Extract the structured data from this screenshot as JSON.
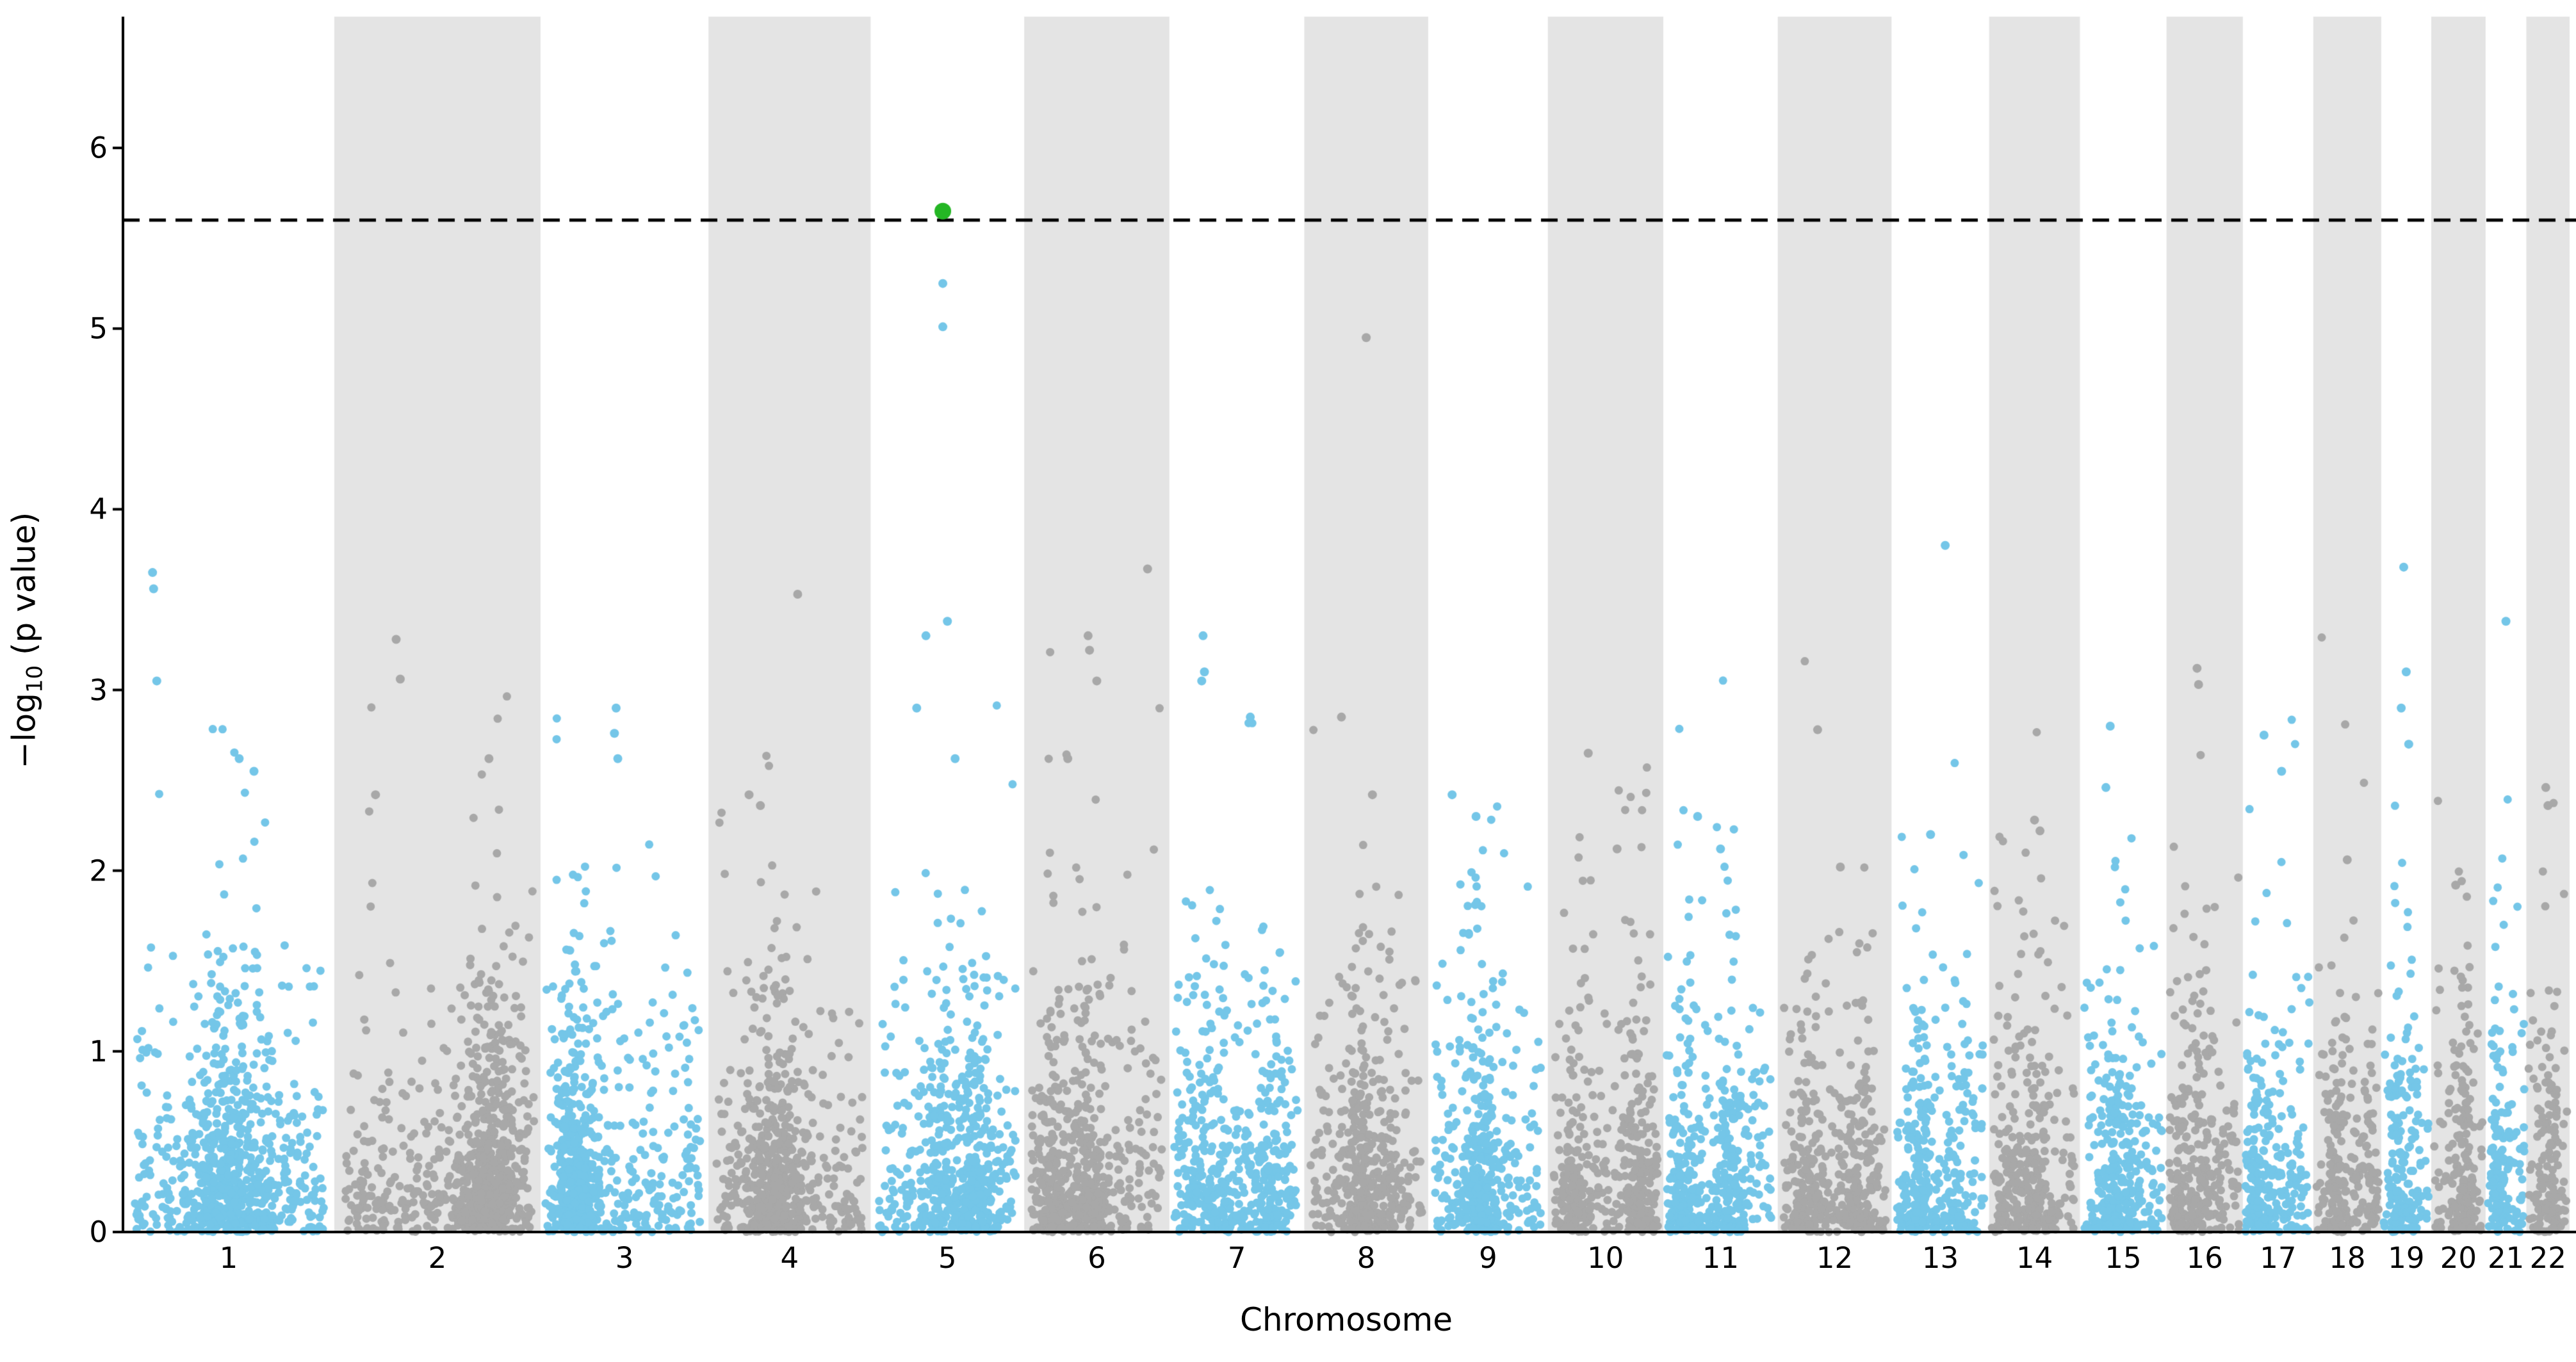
{
  "figure": {
    "xlabel": "Chromosome",
    "ylabel_prefix": "−log",
    "ylabel_sub": "10",
    "ylabel_suffix": " (p value)"
  },
  "chart_data": {
    "type": "scatter",
    "subtype": "manhattan-plot",
    "title": "",
    "xlabel": "Chromosome",
    "ylabel": "−log10 (p value)",
    "ylim": [
      0,
      6.73
    ],
    "yticks": [
      0,
      1,
      2,
      3,
      4,
      5,
      6
    ],
    "grid": false,
    "legend": null,
    "significance_threshold": 5.6,
    "significance_line_style": "dashed",
    "colors": {
      "odd_chromosome_points": "#74C6E8",
      "even_chromosome_points": "#A8A8A8",
      "even_chromosome_band": "#E4E4E4",
      "significant_point": "#24B624",
      "threshold_line": "#000000",
      "axis": "#000000",
      "background": "#FFFFFF"
    },
    "chromosomes": [
      {
        "label": "1",
        "length_mb": 249
      },
      {
        "label": "2",
        "length_mb": 243
      },
      {
        "label": "3",
        "length_mb": 198
      },
      {
        "label": "4",
        "length_mb": 191
      },
      {
        "label": "5",
        "length_mb": 181
      },
      {
        "label": "6",
        "length_mb": 171
      },
      {
        "label": "7",
        "length_mb": 159
      },
      {
        "label": "8",
        "length_mb": 146
      },
      {
        "label": "9",
        "length_mb": 141
      },
      {
        "label": "10",
        "length_mb": 136
      },
      {
        "label": "11",
        "length_mb": 135
      },
      {
        "label": "12",
        "length_mb": 134
      },
      {
        "label": "13",
        "length_mb": 115
      },
      {
        "label": "14",
        "length_mb": 107
      },
      {
        "label": "15",
        "length_mb": 102
      },
      {
        "label": "16",
        "length_mb": 90
      },
      {
        "label": "17",
        "length_mb": 83
      },
      {
        "label": "18",
        "length_mb": 80
      },
      {
        "label": "19",
        "length_mb": 59
      },
      {
        "label": "20",
        "length_mb": 64
      },
      {
        "label": "21",
        "length_mb": 48
      },
      {
        "label": "22",
        "length_mb": 51
      }
    ],
    "top_hit": {
      "chromosome": "5",
      "pos": 0.47,
      "y": 5.65,
      "significant": true
    },
    "notable_points": [
      {
        "chr": "1",
        "pos": 0.14,
        "y": 3.65
      },
      {
        "chr": "1",
        "pos": 0.145,
        "y": 3.56
      },
      {
        "chr": "1",
        "pos": 0.16,
        "y": 3.05
      },
      {
        "chr": "1",
        "pos": 0.55,
        "y": 2.62
      },
      {
        "chr": "1",
        "pos": 0.62,
        "y": 2.55
      },
      {
        "chr": "2",
        "pos": 0.3,
        "y": 3.28
      },
      {
        "chr": "2",
        "pos": 0.32,
        "y": 3.06
      },
      {
        "chr": "2",
        "pos": 0.75,
        "y": 2.62
      },
      {
        "chr": "2",
        "pos": 0.2,
        "y": 2.42
      },
      {
        "chr": "3",
        "pos": 0.45,
        "y": 2.9
      },
      {
        "chr": "3",
        "pos": 0.44,
        "y": 2.76
      },
      {
        "chr": "3",
        "pos": 0.46,
        "y": 2.62
      },
      {
        "chr": "4",
        "pos": 0.55,
        "y": 3.53
      },
      {
        "chr": "4",
        "pos": 0.25,
        "y": 2.42
      },
      {
        "chr": "4",
        "pos": 0.32,
        "y": 2.36
      },
      {
        "chr": "5",
        "pos": 0.47,
        "y": 5.25
      },
      {
        "chr": "5",
        "pos": 0.47,
        "y": 5.01
      },
      {
        "chr": "5",
        "pos": 0.5,
        "y": 3.38
      },
      {
        "chr": "5",
        "pos": 0.36,
        "y": 3.3
      },
      {
        "chr": "5",
        "pos": 0.3,
        "y": 2.9
      },
      {
        "chr": "5",
        "pos": 0.55,
        "y": 2.62
      },
      {
        "chr": "6",
        "pos": 0.85,
        "y": 3.67
      },
      {
        "chr": "6",
        "pos": 0.44,
        "y": 3.3
      },
      {
        "chr": "6",
        "pos": 0.45,
        "y": 3.22
      },
      {
        "chr": "6",
        "pos": 0.5,
        "y": 3.05
      },
      {
        "chr": "6",
        "pos": 0.3,
        "y": 2.62
      },
      {
        "chr": "7",
        "pos": 0.25,
        "y": 3.3
      },
      {
        "chr": "7",
        "pos": 0.26,
        "y": 3.1
      },
      {
        "chr": "7",
        "pos": 0.24,
        "y": 3.05
      },
      {
        "chr": "7",
        "pos": 0.6,
        "y": 2.85
      },
      {
        "chr": "8",
        "pos": 0.5,
        "y": 4.95
      },
      {
        "chr": "8",
        "pos": 0.3,
        "y": 2.85
      },
      {
        "chr": "8",
        "pos": 0.55,
        "y": 2.42
      },
      {
        "chr": "9",
        "pos": 0.2,
        "y": 2.42
      },
      {
        "chr": "9",
        "pos": 0.4,
        "y": 2.3
      },
      {
        "chr": "10",
        "pos": 0.35,
        "y": 2.65
      },
      {
        "chr": "10",
        "pos": 0.6,
        "y": 2.12
      },
      {
        "chr": "11",
        "pos": 0.3,
        "y": 2.3
      },
      {
        "chr": "11",
        "pos": 0.5,
        "y": 2.12
      },
      {
        "chr": "12",
        "pos": 0.35,
        "y": 2.78
      },
      {
        "chr": "12",
        "pos": 0.55,
        "y": 2.02
      },
      {
        "chr": "13",
        "pos": 0.55,
        "y": 3.8
      },
      {
        "chr": "13",
        "pos": 0.4,
        "y": 2.2
      },
      {
        "chr": "14",
        "pos": 0.5,
        "y": 2.28
      },
      {
        "chr": "14",
        "pos": 0.56,
        "y": 2.22
      },
      {
        "chr": "15",
        "pos": 0.35,
        "y": 2.8
      },
      {
        "chr": "15",
        "pos": 0.3,
        "y": 2.46
      },
      {
        "chr": "16",
        "pos": 0.4,
        "y": 3.12
      },
      {
        "chr": "16",
        "pos": 0.42,
        "y": 3.03
      },
      {
        "chr": "17",
        "pos": 0.3,
        "y": 2.75
      },
      {
        "chr": "17",
        "pos": 0.55,
        "y": 2.55
      },
      {
        "chr": "18",
        "pos": 0.5,
        "y": 2.06
      },
      {
        "chr": "19",
        "pos": 0.45,
        "y": 3.68
      },
      {
        "chr": "19",
        "pos": 0.5,
        "y": 3.1
      },
      {
        "chr": "19",
        "pos": 0.4,
        "y": 2.9
      },
      {
        "chr": "19",
        "pos": 0.55,
        "y": 2.7
      },
      {
        "chr": "20",
        "pos": 0.45,
        "y": 1.92
      },
      {
        "chr": "21",
        "pos": 0.5,
        "y": 3.38
      },
      {
        "chr": "22",
        "pos": 0.45,
        "y": 2.46
      },
      {
        "chr": "22",
        "pos": 0.5,
        "y": 2.36
      }
    ],
    "background_points": {
      "distribution": "exponential_neglog10_uniform",
      "density_per_mb": 3.2,
      "max_y": 3.4,
      "seed": 42,
      "point_radius_px": 6.5,
      "top_hit_radius_px": 13
    }
  }
}
